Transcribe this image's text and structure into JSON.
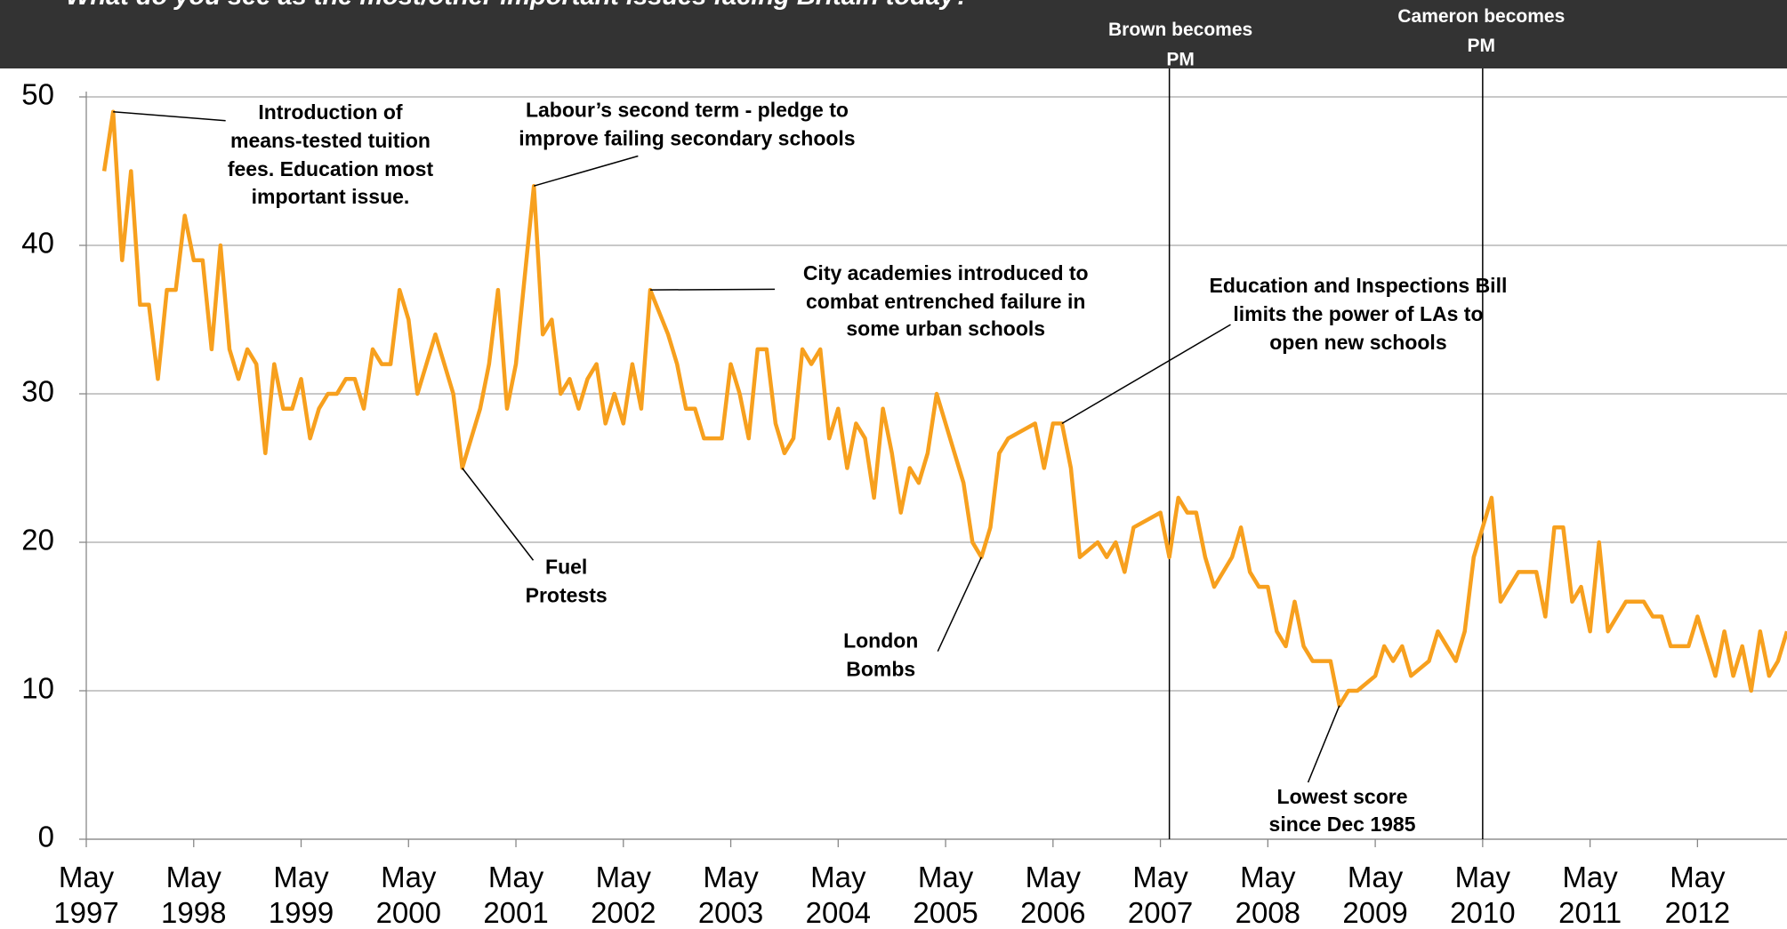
{
  "chart_data": {
    "type": "line",
    "title": "What do you see as the most/other important issues facing Britain today?",
    "color": "#f7a01e",
    "x": [
      "1997-07",
      "1997-08",
      "1997-09",
      "1997-10",
      "1997-11",
      "1997-12",
      "1998-01",
      "1998-02",
      "1998-03",
      "1998-04",
      "1998-05",
      "1998-06",
      "1998-07",
      "1998-08",
      "1998-09",
      "1998-10",
      "1998-11",
      "1998-12",
      "1999-01",
      "1999-02",
      "1999-03",
      "1999-04",
      "1999-05",
      "1999-06",
      "1999-07",
      "1999-08",
      "1999-09",
      "1999-10",
      "1999-11",
      "1999-12",
      "2000-01",
      "2000-02",
      "2000-03",
      "2000-04",
      "2000-05",
      "2000-06",
      "2000-08",
      "2000-10",
      "2000-11",
      "2001-01",
      "2001-02",
      "2001-03",
      "2001-04",
      "2001-05",
      "2001-06",
      "2001-07",
      "2001-08",
      "2001-09",
      "2001-10",
      "2001-11",
      "2001-12",
      "2002-01",
      "2002-02",
      "2002-03",
      "2002-04",
      "2002-05",
      "2002-06",
      "2002-07",
      "2002-08",
      "2002-10",
      "2002-11",
      "2002-12",
      "2003-01",
      "2003-02",
      "2003-03",
      "2003-04",
      "2003-05",
      "2003-06",
      "2003-07",
      "2003-08",
      "2003-09",
      "2003-10",
      "2003-11",
      "2003-12",
      "2004-01",
      "2004-02",
      "2004-03",
      "2004-04",
      "2004-05",
      "2004-06",
      "2004-07",
      "2004-08",
      "2004-09",
      "2004-10",
      "2004-11",
      "2004-12",
      "2005-01",
      "2005-02",
      "2005-03",
      "2005-04",
      "2005-07",
      "2005-08",
      "2005-09",
      "2005-10",
      "2005-11",
      "2005-12",
      "2006-03",
      "2006-04",
      "2006-05",
      "2006-06",
      "2006-07",
      "2006-08",
      "2006-10",
      "2006-11",
      "2006-12",
      "2007-01",
      "2007-02",
      "2007-05",
      "2007-06",
      "2007-07",
      "2007-08",
      "2007-09",
      "2007-10",
      "2007-11",
      "2008-01",
      "2008-02",
      "2008-03",
      "2008-04",
      "2008-05",
      "2008-06",
      "2008-07",
      "2008-08",
      "2008-09",
      "2008-10",
      "2008-12",
      "2009-01",
      "2009-02",
      "2009-03",
      "2009-05",
      "2009-06",
      "2009-07",
      "2009-08",
      "2009-09",
      "2009-11",
      "2009-12",
      "2010-02",
      "2010-03",
      "2010-04",
      "2010-06",
      "2010-07",
      "2010-09",
      "2010-11",
      "2010-12",
      "2011-01",
      "2011-02",
      "2011-03",
      "2011-04",
      "2011-05",
      "2011-06",
      "2011-07",
      "2011-09",
      "2011-11",
      "2011-12",
      "2012-01",
      "2012-02",
      "2012-04",
      "2012-05",
      "2012-07",
      "2012-08",
      "2012-09",
      "2012-10",
      "2012-11",
      "2012-12",
      "2013-01",
      "2013-02",
      "2013-03"
    ],
    "values": [
      45,
      49,
      39,
      45,
      36,
      36,
      31,
      37,
      37,
      42,
      39,
      39,
      33,
      40,
      33,
      31,
      33,
      32,
      26,
      32,
      29,
      29,
      31,
      27,
      29,
      30,
      30,
      31,
      31,
      29,
      33,
      32,
      32,
      37,
      35,
      30,
      34,
      30,
      25,
      29,
      32,
      37,
      29,
      32,
      38,
      44,
      34,
      35,
      30,
      31,
      29,
      31,
      32,
      28,
      30,
      28,
      32,
      29,
      37,
      34,
      32,
      29,
      29,
      27,
      27,
      27,
      32,
      30,
      27,
      33,
      33,
      28,
      26,
      27,
      33,
      32,
      33,
      27,
      29,
      25,
      28,
      27,
      23,
      29,
      26,
      22,
      25,
      24,
      26,
      30,
      24,
      20,
      19,
      21,
      26,
      27,
      28,
      25,
      28,
      28,
      25,
      19,
      20,
      19,
      20,
      18,
      21,
      22,
      19,
      23,
      22,
      22,
      19,
      17,
      19,
      21,
      18,
      17,
      17,
      14,
      13,
      16,
      13,
      12,
      12,
      9,
      10,
      10,
      11,
      13,
      12,
      13,
      11,
      12,
      14,
      12,
      14,
      19,
      23,
      16,
      18,
      18,
      15,
      21,
      21,
      16,
      17,
      14,
      20,
      14,
      16,
      16,
      15,
      15,
      13,
      13,
      15,
      11,
      14,
      11,
      13,
      10,
      14,
      11,
      12,
      14
    ],
    "xlim": [
      "1997-05",
      "2013-03"
    ],
    "xticks": [
      {
        "value": "1997-05",
        "label": "May 1997"
      },
      {
        "value": "1998-05",
        "label": "May 1998"
      },
      {
        "value": "1999-05",
        "label": "May 1999"
      },
      {
        "value": "2000-05",
        "label": "May 2000"
      },
      {
        "value": "2001-05",
        "label": "May 2001"
      },
      {
        "value": "2002-05",
        "label": "May 2002"
      },
      {
        "value": "2003-05",
        "label": "May 2003"
      },
      {
        "value": "2004-05",
        "label": "May 2004"
      },
      {
        "value": "2005-05",
        "label": "May 2005"
      },
      {
        "value": "2006-05",
        "label": "May 2006"
      },
      {
        "value": "2007-05",
        "label": "May 2007"
      },
      {
        "value": "2008-05",
        "label": "May 2008"
      },
      {
        "value": "2009-05",
        "label": "May 2009"
      },
      {
        "value": "2010-05",
        "label": "May 2010"
      },
      {
        "value": "2011-05",
        "label": "May 2011"
      },
      {
        "value": "2012-05",
        "label": "May 2012"
      }
    ],
    "ylim": [
      0,
      50
    ],
    "yticks": [
      0,
      10,
      20,
      30,
      40,
      50
    ],
    "grid": true,
    "events": [
      {
        "x": "2007-06",
        "text": [
          "Brown becomes",
          "PM"
        ]
      },
      {
        "x": "2010-05",
        "text": [
          "Cameron becomes",
          "PM"
        ]
      }
    ],
    "annotations": [
      {
        "x": "1997-08",
        "y": 49,
        "text": [
          "Introduction of",
          "means-tested tuition",
          "fees. Education most",
          "important issue."
        ]
      },
      {
        "x": "2001-07",
        "y": 44,
        "text": [
          "Labour’s second term - pledge to",
          "improve failing secondary schools"
        ]
      },
      {
        "x": "2002-08",
        "y": 37,
        "text": [
          "City academies introduced to",
          "combat entrenched failure in",
          "some urban schools"
        ]
      },
      {
        "x": "2006-06",
        "y": 28,
        "text": [
          "Education and Inspections Bill",
          "limits the power of LAs to",
          "open new schools"
        ]
      },
      {
        "x": "2000-11",
        "y": 25,
        "text": [
          "Fuel",
          "Protests"
        ]
      },
      {
        "x": "2005-09",
        "y": 19,
        "text": [
          "London",
          "Bombs"
        ]
      },
      {
        "x": "2009-01",
        "y": 9,
        "text": [
          "Lowest score",
          "since Dec 1985"
        ]
      }
    ]
  }
}
